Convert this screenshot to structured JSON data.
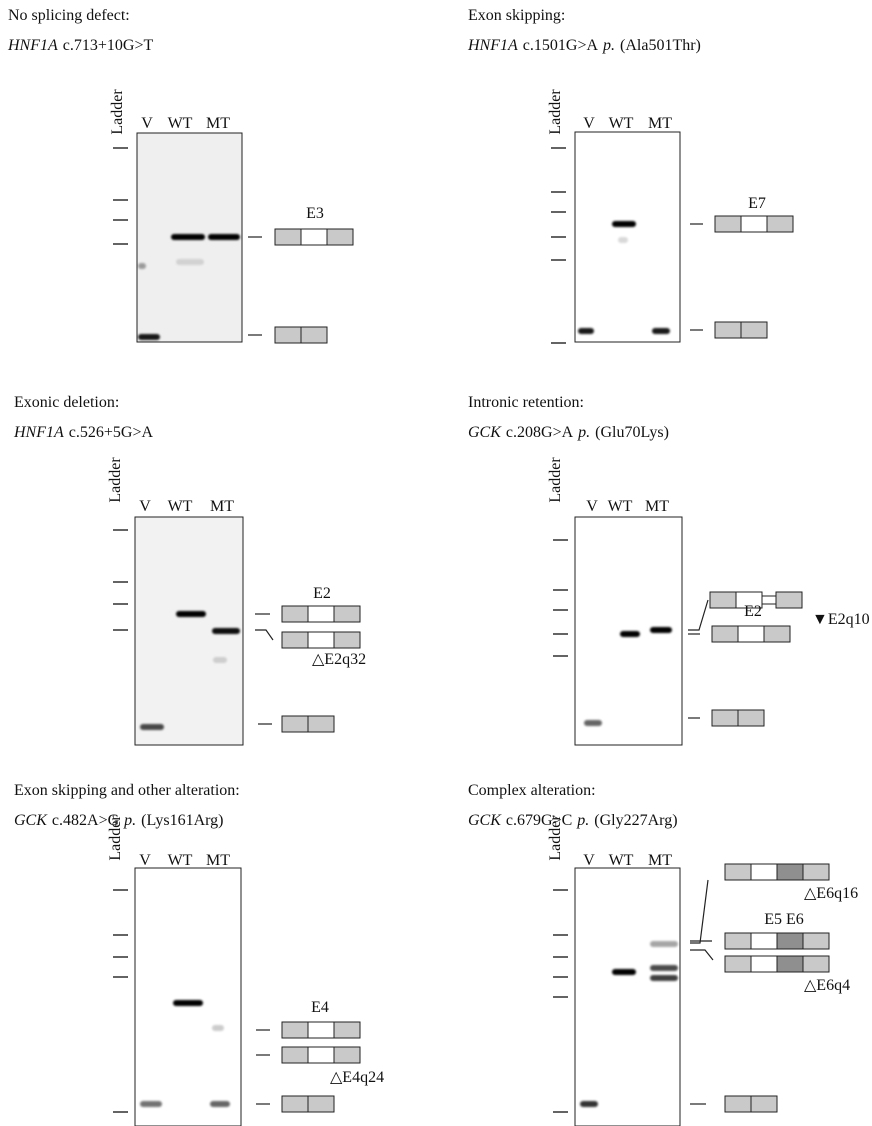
{
  "panels": [
    {
      "title": "No splicing defect:",
      "gene": "HNF1A",
      "cdna": "c.713+10G>T",
      "lanes": [
        "Ladder",
        "V",
        "WT",
        "MT"
      ],
      "labels": [
        "E3"
      ]
    },
    {
      "title": "Exon skipping:",
      "gene": "HNF1A",
      "cdna": "c.1501G>A",
      "p": "p.",
      "protein": "(Ala501Thr)",
      "lanes": [
        "Ladder",
        "V",
        "WT",
        "MT"
      ],
      "labels": [
        "E7"
      ]
    },
    {
      "title": "Exonic deletion:",
      "gene": "HNF1A",
      "cdna": "c.526+5G>A",
      "lanes": [
        "Ladder",
        "V",
        "WT",
        "MT"
      ],
      "labels": [
        "E2",
        "△E2q32"
      ]
    },
    {
      "title": "Intronic retention:",
      "gene": "GCK",
      "cdna": "c.208G>A",
      "p": "p.",
      "protein": "(Glu70Lys)",
      "lanes": [
        "Ladder",
        "V",
        "WT",
        "MT"
      ],
      "labels": [
        "▼E2q10",
        "E2"
      ]
    },
    {
      "title": "Exon skipping and other alteration:",
      "gene": "GCK",
      "cdna": "c.482A>G",
      "p": "p.",
      "protein": "(Lys161Arg)",
      "lanes": [
        "Ladder",
        "V",
        "WT",
        "MT"
      ],
      "labels": [
        "E4",
        "△E4q24"
      ]
    },
    {
      "title": "Complex alteration:",
      "gene": "GCK",
      "cdna": "c.679G>C",
      "p": "p.",
      "protein": "(Gly227Arg)",
      "lanes": [
        "Ladder",
        "V",
        "WT",
        "MT"
      ],
      "labels": [
        "△E6q16",
        "E5 E6",
        "△E6q4"
      ]
    }
  ]
}
